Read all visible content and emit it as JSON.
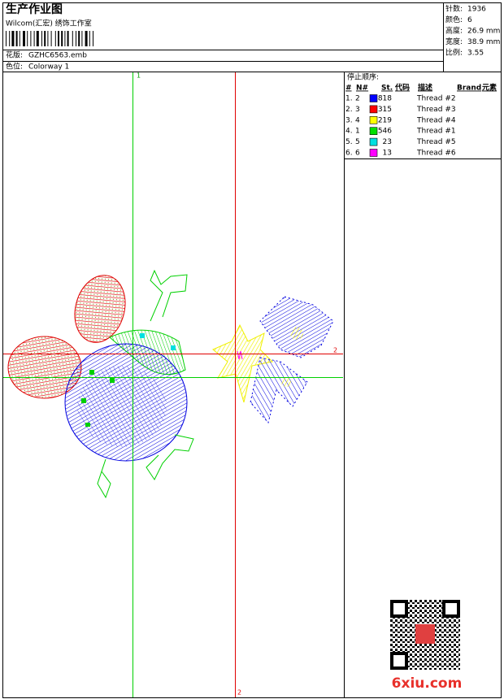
{
  "header": {
    "title": "生产作业图",
    "company": "Wilcom(汇宏) 绣饰工作室",
    "design_label": "花版:",
    "design": "GZHC6563.emb",
    "colorway_label": "色位:",
    "colorway": "Colorway 1"
  },
  "stats": [
    {
      "label": "针数:",
      "value": "1936"
    },
    {
      "label": "颜色:",
      "value": "6"
    },
    {
      "label": "高度:",
      "value": "26.9 mm"
    },
    {
      "label": "宽度:",
      "value": "38.9 mm"
    },
    {
      "label": "比例:",
      "value": "3.55"
    }
  ],
  "stop_sequence": {
    "title": "停止顺序:",
    "columns": [
      "#",
      "N#",
      "St.",
      "代码",
      "描述",
      "Brand",
      "元素"
    ],
    "rows": [
      {
        "index": "1.",
        "needle": "2",
        "color": "#0000ff",
        "stitches": 818,
        "description": "Thread #2"
      },
      {
        "index": "2.",
        "needle": "3",
        "color": "#ff0000",
        "stitches": 315,
        "description": "Thread #3"
      },
      {
        "index": "3.",
        "needle": "4",
        "color": "#ffff00",
        "stitches": 219,
        "description": "Thread #4"
      },
      {
        "index": "4.",
        "needle": "1",
        "color": "#00e000",
        "stitches": 546,
        "description": "Thread #1"
      },
      {
        "index": "5.",
        "needle": "5",
        "color": "#00e0e0",
        "stitches": 23,
        "description": "Thread #5"
      },
      {
        "index": "6.",
        "needle": "6",
        "color": "#ff00ff",
        "stitches": 13,
        "description": "Thread #6"
      }
    ]
  },
  "guides": {
    "vertical_1": "1",
    "horizontal_2": "2",
    "vertical_2": "2"
  },
  "watermark": "6xiu.com"
}
